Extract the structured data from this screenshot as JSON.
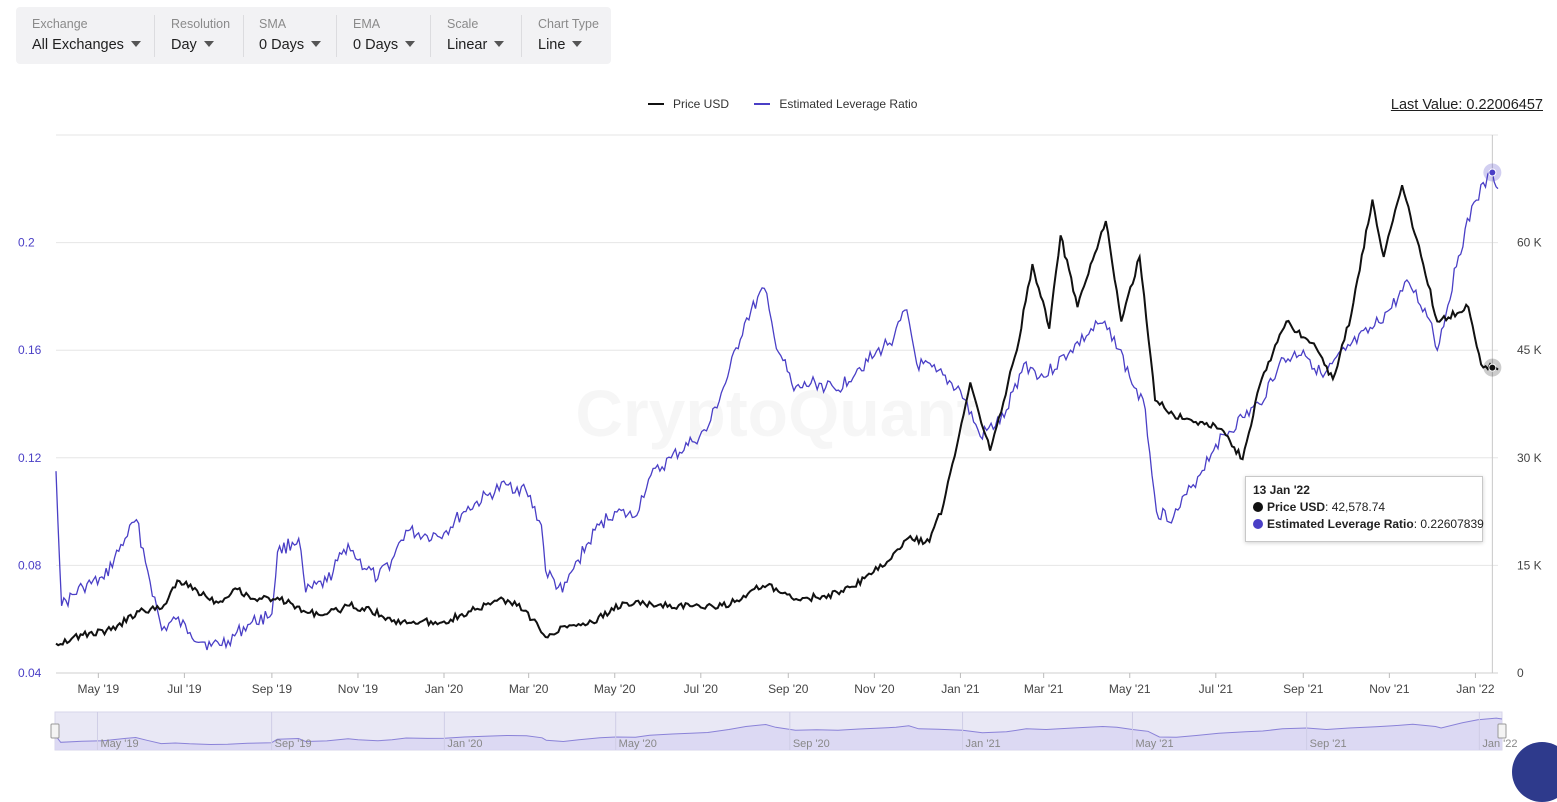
{
  "toolbar": {
    "exchange": {
      "label": "Exchange",
      "value": "All Exchanges"
    },
    "resolution": {
      "label": "Resolution",
      "value": "Day"
    },
    "sma": {
      "label": "SMA",
      "value": "0 Days"
    },
    "ema": {
      "label": "EMA",
      "value": "0 Days"
    },
    "scale": {
      "label": "Scale",
      "value": "Linear"
    },
    "chart_type": {
      "label": "Chart Type",
      "value": "Line"
    }
  },
  "legend": {
    "price": "Price USD",
    "ratio": "Estimated Leverage Ratio"
  },
  "last_value": "Last Value: 0.22006457",
  "watermark": "CryptoQuant",
  "tooltip": {
    "date": "13 Jan '22",
    "price_label": "Price USD",
    "price_value": ": 42,578.74",
    "ratio_label": "Estimated Leverage Ratio",
    "ratio_value": ": 0.22607839"
  },
  "colors": {
    "price": "#111111",
    "ratio": "#4a3fc6",
    "left_axis": "#4a3fc6",
    "grid": "#e6e6e6"
  },
  "chart_data": {
    "type": "line",
    "x_start": "2019-04-01",
    "x_end": "2022-01-17",
    "xticks": [
      "May '19",
      "Jul '19",
      "Sep '19",
      "Nov '19",
      "Jan '20",
      "Mar '20",
      "May '20",
      "Jul '20",
      "Sep '20",
      "Nov '20",
      "Jan '21",
      "Mar '21",
      "May '21",
      "Jul '21",
      "Sep '21",
      "Nov '21",
      "Jan '22"
    ],
    "navigator_ticks": [
      "May '19",
      "Sep '19",
      "Jan '20",
      "May '20",
      "Sep '20",
      "Jan '21",
      "May '21",
      "Sep '21",
      "Jan '22"
    ],
    "y_left": {
      "ticks": [
        "0.04",
        "0.08",
        "0.12",
        "0.16",
        "0.2"
      ],
      "values": [
        0.04,
        0.08,
        0.12,
        0.16,
        0.2
      ],
      "range": [
        0.04,
        0.24
      ]
    },
    "y_right": {
      "ticks": [
        "0",
        "15 K",
        "30 K",
        "45 K",
        "60 K"
      ],
      "values": [
        0,
        15000,
        30000,
        45000,
        60000
      ],
      "range": [
        0,
        75000
      ]
    },
    "series": [
      {
        "name": "Estimated Leverage Ratio",
        "axis": "left",
        "points": [
          [
            "2019-04-01",
            0.115
          ],
          [
            "2019-04-05",
            0.065
          ],
          [
            "2019-04-20",
            0.072
          ],
          [
            "2019-05-05",
            0.075
          ],
          [
            "2019-05-20",
            0.09
          ],
          [
            "2019-05-28",
            0.097
          ],
          [
            "2019-06-05",
            0.078
          ],
          [
            "2019-06-15",
            0.056
          ],
          [
            "2019-06-25",
            0.06
          ],
          [
            "2019-07-05",
            0.055
          ],
          [
            "2019-07-20",
            0.05
          ],
          [
            "2019-08-01",
            0.052
          ],
          [
            "2019-08-15",
            0.058
          ],
          [
            "2019-09-01",
            0.062
          ],
          [
            "2019-09-05",
            0.085
          ],
          [
            "2019-09-20",
            0.09
          ],
          [
            "2019-09-25",
            0.07
          ],
          [
            "2019-10-10",
            0.074
          ],
          [
            "2019-10-25",
            0.088
          ],
          [
            "2019-11-01",
            0.082
          ],
          [
            "2019-11-15",
            0.075
          ],
          [
            "2019-11-25",
            0.082
          ],
          [
            "2019-12-05",
            0.093
          ],
          [
            "2019-12-20",
            0.091
          ],
          [
            "2020-01-01",
            0.092
          ],
          [
            "2020-01-15",
            0.1
          ],
          [
            "2020-02-01",
            0.106
          ],
          [
            "2020-02-14",
            0.11
          ],
          [
            "2020-02-28",
            0.108
          ],
          [
            "2020-03-10",
            0.095
          ],
          [
            "2020-03-13",
            0.078
          ],
          [
            "2020-03-25",
            0.07
          ],
          [
            "2020-04-05",
            0.082
          ],
          [
            "2020-04-20",
            0.095
          ],
          [
            "2020-05-01",
            0.1
          ],
          [
            "2020-05-15",
            0.098
          ],
          [
            "2020-05-25",
            0.112
          ],
          [
            "2020-06-10",
            0.12
          ],
          [
            "2020-06-25",
            0.126
          ],
          [
            "2020-07-05",
            0.13
          ],
          [
            "2020-07-20",
            0.15
          ],
          [
            "2020-08-01",
            0.17
          ],
          [
            "2020-08-15",
            0.183
          ],
          [
            "2020-08-22",
            0.165
          ],
          [
            "2020-09-05",
            0.145
          ],
          [
            "2020-09-20",
            0.148
          ],
          [
            "2020-10-05",
            0.145
          ],
          [
            "2020-10-20",
            0.153
          ],
          [
            "2020-11-01",
            0.158
          ],
          [
            "2020-11-15",
            0.165
          ],
          [
            "2020-11-24",
            0.175
          ],
          [
            "2020-12-01",
            0.155
          ],
          [
            "2020-12-15",
            0.152
          ],
          [
            "2021-01-01",
            0.145
          ],
          [
            "2021-01-15",
            0.128
          ],
          [
            "2021-02-01",
            0.135
          ],
          [
            "2021-02-15",
            0.155
          ],
          [
            "2021-03-01",
            0.15
          ],
          [
            "2021-03-20",
            0.16
          ],
          [
            "2021-04-10",
            0.17
          ],
          [
            "2021-04-20",
            0.165
          ],
          [
            "2021-05-01",
            0.15
          ],
          [
            "2021-05-12",
            0.138
          ],
          [
            "2021-05-20",
            0.1
          ],
          [
            "2021-06-01",
            0.098
          ],
          [
            "2021-06-15",
            0.11
          ],
          [
            "2021-07-01",
            0.125
          ],
          [
            "2021-07-20",
            0.135
          ],
          [
            "2021-08-01",
            0.14
          ],
          [
            "2021-08-15",
            0.155
          ],
          [
            "2021-09-01",
            0.16
          ],
          [
            "2021-09-15",
            0.15
          ],
          [
            "2021-10-01",
            0.16
          ],
          [
            "2021-10-20",
            0.168
          ],
          [
            "2021-11-01",
            0.175
          ],
          [
            "2021-11-15",
            0.185
          ],
          [
            "2021-12-01",
            0.17
          ],
          [
            "2021-12-05",
            0.16
          ],
          [
            "2021-12-20",
            0.195
          ],
          [
            "2021-12-31",
            0.215
          ],
          [
            "2022-01-13",
            0.22607839
          ],
          [
            "2022-01-17",
            0.22006457
          ]
        ]
      },
      {
        "name": "Price USD",
        "axis": "right",
        "points": [
          [
            "2019-04-01",
            4100
          ],
          [
            "2019-04-20",
            5300
          ],
          [
            "2019-05-10",
            6000
          ],
          [
            "2019-05-30",
            8600
          ],
          [
            "2019-06-15",
            9000
          ],
          [
            "2019-06-26",
            12900
          ],
          [
            "2019-07-10",
            11500
          ],
          [
            "2019-07-25",
            9800
          ],
          [
            "2019-08-06",
            11800
          ],
          [
            "2019-08-20",
            10300
          ],
          [
            "2019-09-05",
            10500
          ],
          [
            "2019-09-25",
            8500
          ],
          [
            "2019-10-10",
            8200
          ],
          [
            "2019-10-26",
            9400
          ],
          [
            "2019-11-10",
            8800
          ],
          [
            "2019-11-25",
            7200
          ],
          [
            "2019-12-15",
            7100
          ],
          [
            "2020-01-01",
            7200
          ],
          [
            "2020-01-20",
            8600
          ],
          [
            "2020-02-12",
            10300
          ],
          [
            "2020-02-28",
            8700
          ],
          [
            "2020-03-13",
            5000
          ],
          [
            "2020-03-25",
            6500
          ],
          [
            "2020-04-15",
            7100
          ],
          [
            "2020-05-08",
            9800
          ],
          [
            "2020-06-01",
            9500
          ],
          [
            "2020-06-25",
            9300
          ],
          [
            "2020-07-10",
            9200
          ],
          [
            "2020-07-25",
            9900
          ],
          [
            "2020-08-05",
            11400
          ],
          [
            "2020-08-17",
            12200
          ],
          [
            "2020-09-05",
            10200
          ],
          [
            "2020-09-25",
            10700
          ],
          [
            "2020-10-10",
            11300
          ],
          [
            "2020-10-25",
            13200
          ],
          [
            "2020-11-10",
            15500
          ],
          [
            "2020-11-25",
            18800
          ],
          [
            "2020-12-10",
            18300
          ],
          [
            "2020-12-20",
            23500
          ],
          [
            "2021-01-08",
            40500
          ],
          [
            "2021-01-22",
            31000
          ],
          [
            "2021-02-10",
            45000
          ],
          [
            "2021-02-21",
            57000
          ],
          [
            "2021-03-05",
            48000
          ],
          [
            "2021-03-13",
            61000
          ],
          [
            "2021-03-25",
            51000
          ],
          [
            "2021-04-14",
            63000
          ],
          [
            "2021-04-25",
            49000
          ],
          [
            "2021-05-08",
            58000
          ],
          [
            "2021-05-19",
            38000
          ],
          [
            "2021-06-01",
            36000
          ],
          [
            "2021-06-20",
            35000
          ],
          [
            "2021-07-05",
            34000
          ],
          [
            "2021-07-20",
            29800
          ],
          [
            "2021-08-01",
            40000
          ],
          [
            "2021-08-20",
            49000
          ],
          [
            "2021-09-07",
            46000
          ],
          [
            "2021-09-22",
            41000
          ],
          [
            "2021-10-05",
            50000
          ],
          [
            "2021-10-20",
            66000
          ],
          [
            "2021-10-28",
            58000
          ],
          [
            "2021-11-10",
            68000
          ],
          [
            "2021-11-25",
            57000
          ],
          [
            "2021-12-05",
            49000
          ],
          [
            "2021-12-27",
            51000
          ],
          [
            "2022-01-05",
            43000
          ],
          [
            "2022-01-13",
            42578.74
          ],
          [
            "2022-01-17",
            42300
          ]
        ]
      }
    ]
  }
}
